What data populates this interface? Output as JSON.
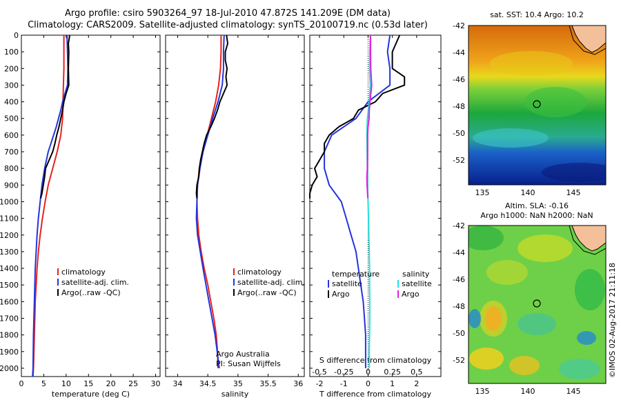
{
  "header": {
    "title_line1": "Argo profile: csiro 5903264_97 18-Jul-2010 47.872S 141.209E (DM data)",
    "title_line2": "Climatology: CARS2009. Satellite-adjusted climatology: synTS_20100719.nc (0.53d later)"
  },
  "side_label": "©IMOS 02-Aug-2017 21:11:18",
  "colors": {
    "climatology": "#e8201c",
    "satellite": "#2233dd",
    "argo": "#000000",
    "sal_satellite": "#22e0e0",
    "sal_argo": "#e020e0"
  },
  "chart_data": [
    {
      "type": "line",
      "panel": "temperature",
      "xlabel": "temperature (deg C)",
      "ylabel": "",
      "xlim": [
        0,
        31
      ],
      "ylim": [
        2050,
        0
      ],
      "xticks": [
        0,
        5,
        10,
        15,
        20,
        25,
        30
      ],
      "yticks": [
        0,
        100,
        200,
        300,
        400,
        500,
        600,
        700,
        800,
        900,
        1000,
        1100,
        1200,
        1300,
        1400,
        1500,
        1600,
        1700,
        1800,
        1900,
        2000
      ],
      "legend": [
        "climatology",
        "satellite-adj. clim.",
        "Argo(..raw -QC)"
      ],
      "series": [
        {
          "name": "climatology",
          "depth": [
            0,
            100,
            200,
            300,
            400,
            500,
            600,
            700,
            800,
            900,
            1000,
            1100,
            1200,
            1300,
            1400,
            1500,
            1600,
            1700,
            1800,
            1900,
            2000,
            2050
          ],
          "values": [
            9.5,
            9.5,
            9.5,
            9.4,
            9.3,
            9.2,
            8.8,
            8.0,
            7.0,
            6.0,
            5.3,
            4.7,
            4.2,
            3.8,
            3.5,
            3.3,
            3.1,
            3.0,
            2.9,
            2.8,
            2.7,
            2.6
          ]
        },
        {
          "name": "satellite-adj. clim.",
          "depth": [
            0,
            100,
            200,
            300,
            400,
            450,
            500,
            550,
            600,
            650,
            700,
            800,
            900,
            1000,
            1100,
            1200,
            1300,
            1400,
            1600,
            1800,
            2000,
            2050
          ],
          "values": [
            10.2,
            10.3,
            10.4,
            10.3,
            9.2,
            8.8,
            8.3,
            7.8,
            7.2,
            6.6,
            6.0,
            5.2,
            4.6,
            4.2,
            3.8,
            3.5,
            3.3,
            3.1,
            2.9,
            2.7,
            2.6,
            2.5
          ]
        },
        {
          "name": "Argo(..raw -QC)",
          "depth": [
            0,
            50,
            100,
            200,
            300,
            350,
            400,
            450,
            500,
            550,
            600,
            650,
            700,
            750,
            800,
            850,
            900,
            950,
            980
          ],
          "values": [
            10.8,
            10.5,
            10.6,
            10.5,
            10.6,
            10.0,
            9.5,
            9.2,
            8.8,
            8.4,
            7.9,
            7.5,
            7.0,
            6.2,
            5.4,
            5.2,
            4.9,
            4.6,
            4.3
          ]
        }
      ]
    },
    {
      "type": "line",
      "panel": "salinity",
      "xlabel": "salinity",
      "ylabel": "",
      "xlim": [
        33.8,
        36.1
      ],
      "ylim": [
        2050,
        0
      ],
      "xticks": [
        34,
        34.5,
        35,
        35.5,
        36
      ],
      "legend": [
        "climatology",
        "satellite-adj. clim.",
        "Argo(..raw -QC)"
      ],
      "annotations": [
        "Argo Australia",
        "PI: Susan Wijffels"
      ],
      "series": [
        {
          "name": "climatology",
          "depth": [
            0,
            100,
            200,
            300,
            400,
            500,
            600,
            700,
            800,
            900,
            1000,
            1100,
            1200,
            1300,
            1400,
            1500,
            1600,
            1700,
            1800,
            1900,
            2000
          ],
          "values": [
            34.72,
            34.72,
            34.71,
            34.68,
            34.63,
            34.56,
            34.49,
            34.42,
            34.36,
            34.33,
            34.32,
            34.33,
            34.35,
            34.39,
            34.44,
            34.5,
            34.55,
            34.6,
            34.64,
            34.66,
            34.67
          ]
        },
        {
          "name": "satellite-adj. clim.",
          "depth": [
            0,
            100,
            200,
            300,
            400,
            500,
            600,
            700,
            800,
            900,
            1000,
            1100,
            1200,
            1400,
            1600,
            1800,
            2000
          ],
          "values": [
            34.77,
            34.76,
            34.76,
            34.74,
            34.67,
            34.58,
            34.5,
            34.42,
            34.37,
            34.33,
            34.32,
            34.31,
            34.33,
            34.42,
            34.52,
            34.62,
            34.69
          ]
        },
        {
          "name": "Argo(..raw -QC)",
          "depth": [
            0,
            50,
            100,
            150,
            200,
            250,
            300,
            350,
            400,
            450,
            500,
            550,
            600,
            650,
            700,
            750,
            800,
            850,
            900,
            950,
            980
          ],
          "values": [
            34.81,
            34.83,
            34.79,
            34.79,
            34.82,
            34.8,
            34.82,
            34.76,
            34.7,
            34.66,
            34.61,
            34.55,
            34.48,
            34.44,
            34.41,
            34.38,
            34.36,
            34.35,
            34.32,
            34.31,
            34.32
          ]
        }
      ]
    },
    {
      "type": "line",
      "panel": "difference",
      "xlabel": "T difference from climatology",
      "x2label": "S difference from climatology",
      "xlim": [
        -2.4,
        3.0
      ],
      "ylim": [
        2050,
        0
      ],
      "xticks": [
        -2,
        -1,
        0,
        1,
        2
      ],
      "x2ticks": [
        "-0.5",
        "-0.25",
        "0",
        "0.25",
        "0.5"
      ],
      "legend_headers": [
        "temperature",
        "salinity"
      ],
      "legend": [
        "satellite",
        "Argo",
        "satellite",
        "Argo"
      ],
      "series": [
        {
          "name": "temperature satellite",
          "depth": [
            0,
            100,
            200,
            300,
            400,
            500,
            550,
            600,
            700,
            800,
            900,
            1000,
            1100,
            1200,
            1300,
            1400,
            1500,
            1600,
            1700,
            1800,
            1900,
            2000
          ],
          "values": [
            0.9,
            0.8,
            0.9,
            0.9,
            0.0,
            -0.5,
            -1.0,
            -1.5,
            -1.8,
            -1.8,
            -1.6,
            -1.1,
            -0.9,
            -0.7,
            -0.5,
            -0.4,
            -0.3,
            -0.2,
            -0.15,
            -0.1,
            -0.1,
            -0.1
          ]
        },
        {
          "name": "temperature Argo",
          "depth": [
            0,
            100,
            200,
            250,
            300,
            350,
            400,
            450,
            500,
            550,
            600,
            650,
            700,
            750,
            800,
            850,
            900,
            950,
            980
          ],
          "values": [
            1.3,
            1.0,
            1.0,
            1.5,
            1.5,
            0.6,
            0.3,
            -0.4,
            -0.6,
            -1.2,
            -1.6,
            -1.8,
            -1.8,
            -2.0,
            -2.2,
            -2.1,
            -2.3,
            -2.4,
            -2.4
          ]
        },
        {
          "name": "salinity satellite",
          "depth": [
            0,
            100,
            200,
            300,
            400,
            500,
            600,
            700,
            800,
            900,
            1000,
            1100,
            1200,
            1300,
            1400,
            1500,
            1600,
            1700,
            1800,
            1900,
            2000
          ],
          "values": [
            0.09,
            0.07,
            0.06,
            0.09,
            0.05,
            -0.03,
            -0.05,
            -0.04,
            -0.03,
            -0.02,
            0.0,
            0.02,
            0.03,
            0.05,
            0.06,
            0.06,
            0.07,
            0.07,
            0.06,
            0.05,
            0.05
          ]
        },
        {
          "name": "salinity Argo",
          "depth": [
            0,
            100,
            200,
            300,
            400,
            450,
            500,
            550,
            600,
            700,
            800,
            850,
            900,
            950,
            980
          ],
          "values": [
            0.1,
            0.1,
            0.11,
            0.15,
            0.08,
            0.05,
            0.04,
            0.0,
            -0.02,
            -0.02,
            -0.03,
            -0.05,
            -0.04,
            -0.02,
            -0.01
          ]
        }
      ]
    }
  ],
  "maps": [
    {
      "title": "sat. SST: 10.4  Argo: 10.2",
      "yticks": [
        "-42",
        "-44",
        "-46",
        "-48",
        "-50",
        "-52"
      ],
      "xticks": [
        "135",
        "140",
        "145"
      ]
    },
    {
      "title1": "Altim. SLA: -0.16",
      "title2": "Argo h1000: NaN h2000: NaN",
      "yticks": [
        "-42",
        "-44",
        "-46",
        "-48",
        "-50",
        "-52"
      ],
      "xticks": [
        "135",
        "140",
        "145"
      ]
    }
  ]
}
